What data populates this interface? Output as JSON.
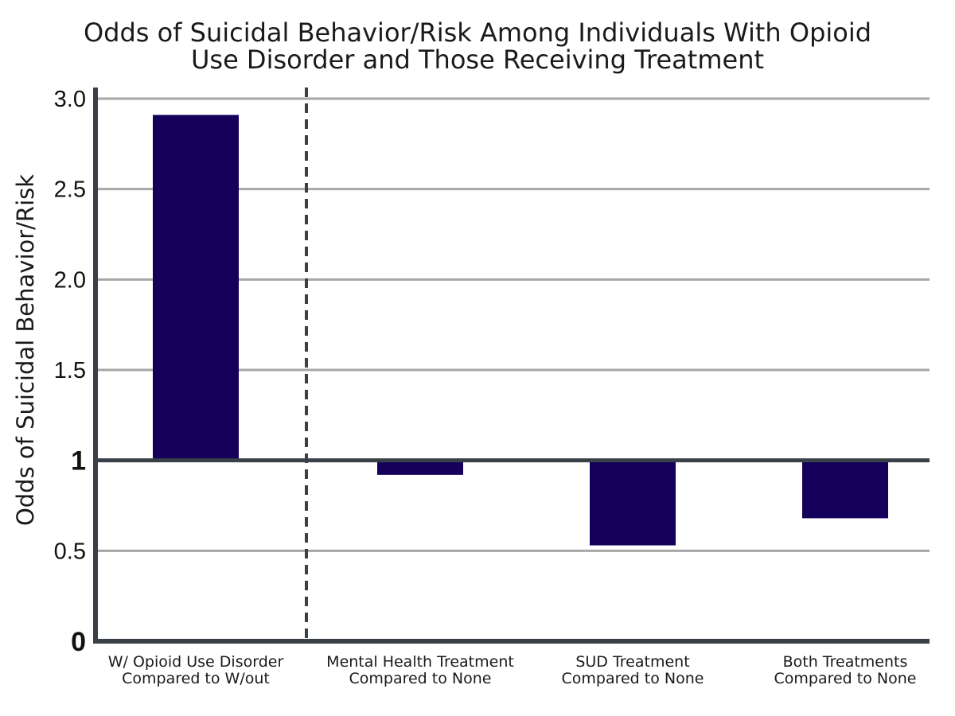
{
  "chart_data": {
    "type": "bar",
    "title": "Odds of Suicidal Behavior/Risk Among Individuals With Opioid Use Disorder and Those Receiving Treatment",
    "title_lines": [
      "Odds of Suicidal Behavior/Risk Among Individuals With Opioid",
      "Use Disorder and Those Receiving Treatment"
    ],
    "ylabel": "Odds of Suicidal Behavior/Risk",
    "xlabel": "",
    "baseline": 1,
    "ylim": [
      0,
      3.0
    ],
    "yticks": [
      {
        "value": 0,
        "label": "0"
      },
      {
        "value": 0.5,
        "label": "0.5"
      },
      {
        "value": 1,
        "label": "1"
      },
      {
        "value": 1.5,
        "label": "1.5"
      },
      {
        "value": 2.0,
        "label": "2.0"
      },
      {
        "value": 2.5,
        "label": "2.5"
      },
      {
        "value": 3.0,
        "label": "3.0"
      }
    ],
    "categories": [
      [
        "W/ Opioid Use Disorder",
        "Compared to W/out"
      ],
      [
        "Mental Health Treatment",
        "Compared to None"
      ],
      [
        "SUD Treatment",
        "Compared to None"
      ],
      [
        "Both Treatments",
        "Compared to None"
      ]
    ],
    "values": [
      2.91,
      0.92,
      0.53,
      0.68
    ],
    "grid": true,
    "divider_after_category": 0,
    "colors": {
      "bar": "#14005a",
      "axis": "#3a4048",
      "grid": "#a6a6a6",
      "divider": "#3a4048"
    }
  }
}
